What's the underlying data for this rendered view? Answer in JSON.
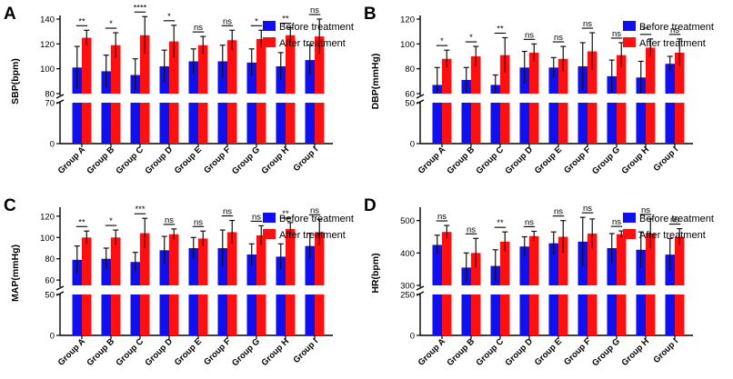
{
  "legend": {
    "before": "Before treatment",
    "after": "After treatment"
  },
  "colors": {
    "before": "#1010ee",
    "after": "#ff1010",
    "axis": "#000000"
  },
  "chart_data": [
    {
      "panel": "A",
      "type": "bar",
      "ylabel": "SBP(bpm)",
      "categories": [
        "Group A",
        "Group B",
        "Group C",
        "Group D",
        "Group E",
        "Group F",
        "Group G",
        "Group H",
        "Group I"
      ],
      "series": [
        {
          "name": "Before treatment",
          "values": [
            101,
            98,
            95,
            102,
            106,
            106,
            105,
            102,
            107
          ],
          "errors": [
            17,
            13,
            13,
            13,
            10,
            13,
            11,
            11,
            12
          ]
        },
        {
          "name": "After treatment",
          "values": [
            125,
            119,
            127,
            122,
            119,
            123,
            124,
            127,
            126
          ],
          "errors": [
            6,
            10,
            15,
            13,
            7,
            8,
            7,
            6,
            14
          ]
        }
      ],
      "significance": [
        "**",
        "*",
        "****",
        "*",
        "ns",
        "ns",
        "*",
        "**",
        "ns"
      ],
      "axis_break": [
        70,
        80
      ],
      "lower_ticks": [
        "0",
        "70"
      ],
      "lower_tick_values": [
        0,
        70
      ],
      "lower_range": [
        0,
        70
      ],
      "upper_ticks": [
        "80",
        "100",
        "120",
        "140"
      ],
      "upper_tick_values": [
        80,
        100,
        120,
        140
      ],
      "upper_range": [
        80,
        140
      ],
      "legend_position": "right"
    },
    {
      "panel": "B",
      "type": "bar",
      "ylabel": "DBP(mmHg)",
      "categories": [
        "Group A",
        "Group B",
        "Group C",
        "Group D",
        "Group E",
        "Group F",
        "Group G",
        "Group H",
        "Group I"
      ],
      "series": [
        {
          "name": "Before treatment",
          "values": [
            67,
            71,
            67,
            81,
            81,
            82,
            74,
            73,
            84
          ],
          "errors": [
            14,
            10,
            8,
            13,
            8,
            19,
            13,
            13,
            6
          ]
        },
        {
          "name": "After treatment",
          "values": [
            88,
            90,
            91,
            93,
            88,
            94,
            91,
            97,
            93
          ],
          "errors": [
            7,
            8,
            14,
            7,
            10,
            15,
            10,
            7,
            11
          ]
        }
      ],
      "significance": [
        "*",
        "*",
        "**",
        "ns",
        "ns",
        "ns",
        "ns",
        "**",
        "ns"
      ],
      "axis_break": [
        50,
        60
      ],
      "lower_ticks": [
        "0",
        "50"
      ],
      "lower_tick_values": [
        0,
        50
      ],
      "lower_range": [
        0,
        50
      ],
      "upper_ticks": [
        "60",
        "80",
        "100",
        "120"
      ],
      "upper_tick_values": [
        60,
        80,
        100,
        120
      ],
      "upper_range": [
        60,
        120
      ],
      "legend_position": "right"
    },
    {
      "panel": "C",
      "type": "bar",
      "ylabel": "MAP(mmHg)",
      "categories": [
        "Group A",
        "Group B",
        "Group C",
        "Group D",
        "Group E",
        "Group F",
        "Group G",
        "Group H",
        "Group I"
      ],
      "series": [
        {
          "name": "Before treatment",
          "values": [
            79,
            80,
            77,
            88,
            90,
            90,
            84,
            82,
            92
          ],
          "errors": [
            13,
            10,
            9,
            13,
            10,
            17,
            10,
            12,
            12
          ]
        },
        {
          "name": "After treatment",
          "values": [
            100,
            100,
            104,
            103,
            99,
            105,
            102,
            108,
            105
          ],
          "errors": [
            6,
            7,
            14,
            5,
            7,
            11,
            9,
            6,
            12
          ]
        }
      ],
      "significance": [
        "**",
        "*",
        "***",
        "ns",
        "ns",
        "ns",
        "ns",
        "**",
        "ns"
      ],
      "axis_break": [
        50,
        55
      ],
      "lower_ticks": [
        "0",
        "50"
      ],
      "lower_tick_values": [
        0,
        50
      ],
      "lower_range": [
        0,
        50
      ],
      "upper_ticks": [
        "60",
        "80",
        "100",
        "120"
      ],
      "upper_tick_values": [
        60,
        80,
        100,
        120
      ],
      "upper_range": [
        55,
        125
      ],
      "legend_position": "right"
    },
    {
      "panel": "D",
      "type": "bar",
      "ylabel": "HR(bpm)",
      "categories": [
        "Group A",
        "Group B",
        "Group C",
        "Group D",
        "Group E",
        "Group F",
        "Group G",
        "Group H",
        "Group I"
      ],
      "series": [
        {
          "name": "Before treatment",
          "values": [
            425,
            355,
            360,
            420,
            430,
            435,
            415,
            410,
            395
          ],
          "errors": [
            30,
            45,
            50,
            30,
            35,
            75,
            45,
            55,
            50
          ]
        },
        {
          "name": "After treatment",
          "values": [
            465,
            400,
            435,
            452,
            450,
            460,
            458,
            460,
            450
          ],
          "errors": [
            20,
            45,
            30,
            15,
            50,
            45,
            10,
            45,
            25
          ]
        }
      ],
      "significance": [
        "ns",
        "ns",
        "**",
        "ns",
        "ns",
        "ns",
        "ns",
        "ns",
        "ns"
      ],
      "axis_break": [
        250,
        300
      ],
      "lower_ticks": [
        "0",
        "250"
      ],
      "lower_tick_values": [
        0,
        250
      ],
      "lower_range": [
        0,
        250
      ],
      "upper_ticks": [
        "300",
        "400",
        "500"
      ],
      "upper_tick_values": [
        300,
        400,
        500
      ],
      "upper_range": [
        300,
        530
      ],
      "legend_position": "right"
    }
  ]
}
